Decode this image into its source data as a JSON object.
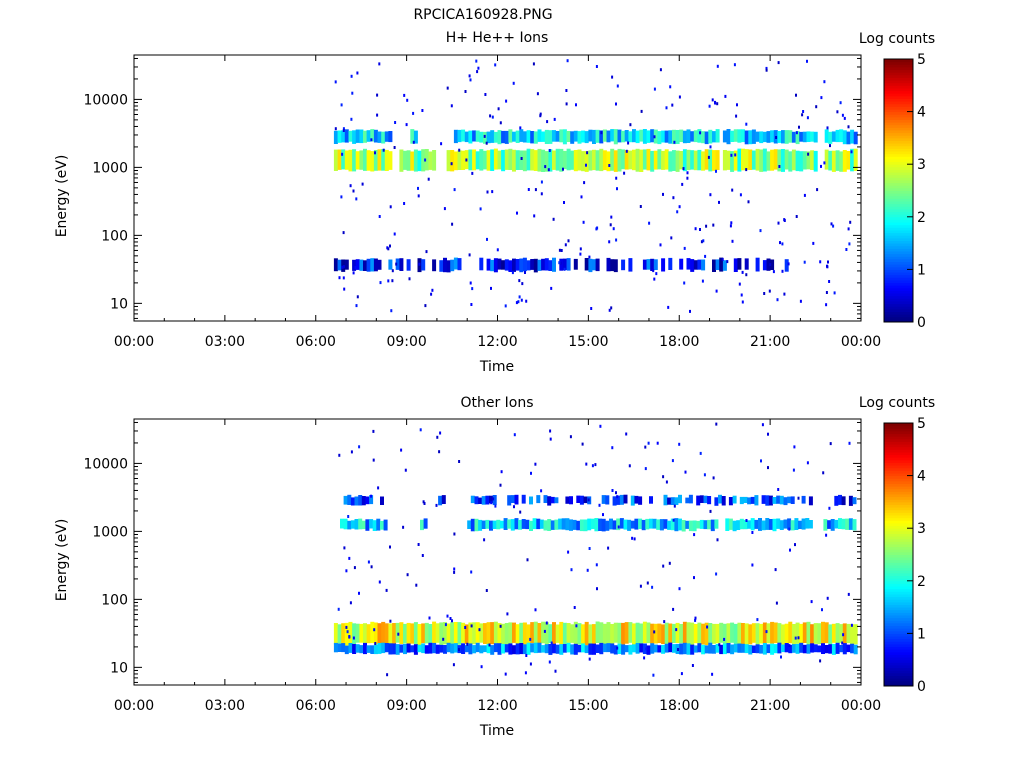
{
  "page": {
    "title": "RPCICA160928.PNG"
  },
  "chart_data": [
    {
      "type": "heatmap",
      "title": "H+ He++ Ions",
      "xlabel": "Time",
      "ylabel": "Energy (eV)",
      "x_ticks": [
        "00:00",
        "03:00",
        "06:00",
        "09:00",
        "12:00",
        "15:00",
        "18:00",
        "21:00",
        "00:00"
      ],
      "xlim_hours": [
        0,
        24
      ],
      "y_scale": "log",
      "ylim": [
        5.5,
        45000
      ],
      "y_ticks": [
        {
          "value": 10,
          "label": "10"
        },
        {
          "value": 100,
          "label": "100"
        },
        {
          "value": 1000,
          "label": "1000"
        },
        {
          "value": 10000,
          "label": "10000"
        }
      ],
      "colorbar": {
        "label": "Log counts",
        "min": 0,
        "max": 5,
        "ticks": [
          "0",
          "1",
          "2",
          "3",
          "4",
          "5"
        ]
      },
      "bands": [
        {
          "energy_low": 900,
          "energy_high": 1800,
          "start_h": 6.6,
          "end_h": 23.8,
          "level": 2.6,
          "gaps": [
            [
              8.4,
              8.7
            ],
            [
              9.9,
              10.3
            ],
            [
              19.2,
              19.4
            ],
            [
              22.5,
              22.7
            ]
          ]
        },
        {
          "energy_low": 2300,
          "energy_high": 3500,
          "start_h": 6.6,
          "end_h": 23.8,
          "level": 1.7,
          "gaps": [
            [
              8.4,
              9.0
            ],
            [
              9.3,
              10.5
            ],
            [
              19.2,
              19.4
            ],
            [
              22.5,
              22.7
            ]
          ]
        },
        {
          "energy_low": 30,
          "energy_high": 45,
          "start_h": 6.6,
          "end_h": 21.8,
          "level": 0.7,
          "gaps": []
        }
      ],
      "scatter_density": 0.6
    },
    {
      "type": "heatmap",
      "title": "Other Ions",
      "xlabel": "Time",
      "ylabel": "Energy (eV)",
      "x_ticks": [
        "00:00",
        "03:00",
        "06:00",
        "09:00",
        "12:00",
        "15:00",
        "18:00",
        "21:00",
        "00:00"
      ],
      "xlim_hours": [
        0,
        24
      ],
      "y_scale": "log",
      "ylim": [
        5.5,
        45000
      ],
      "y_ticks": [
        {
          "value": 10,
          "label": "10"
        },
        {
          "value": 100,
          "label": "100"
        },
        {
          "value": 1000,
          "label": "1000"
        },
        {
          "value": 10000,
          "label": "10000"
        }
      ],
      "colorbar": {
        "label": "Log counts",
        "min": 0,
        "max": 5,
        "ticks": [
          "0",
          "1",
          "2",
          "3",
          "4",
          "5"
        ]
      },
      "bands": [
        {
          "energy_low": 1050,
          "energy_high": 1500,
          "start_h": 6.8,
          "end_h": 23.8,
          "level": 1.6,
          "gaps": [
            [
              8.3,
              9.4
            ],
            [
              9.6,
              10.9
            ],
            [
              19.2,
              19.4
            ],
            [
              22.4,
              22.7
            ]
          ]
        },
        {
          "energy_low": 2500,
          "energy_high": 3300,
          "start_h": 6.8,
          "end_h": 23.8,
          "level": 0.9,
          "gaps": [
            [
              8.3,
              9.8
            ],
            [
              10.2,
              10.9
            ],
            [
              22.4,
              22.7
            ]
          ]
        },
        {
          "energy_low": 22,
          "energy_high": 45,
          "start_h": 6.6,
          "end_h": 23.8,
          "level": 3.0,
          "gaps": []
        },
        {
          "energy_low": 16,
          "energy_high": 22,
          "start_h": 6.6,
          "end_h": 23.8,
          "level": 1.2,
          "gaps": []
        }
      ],
      "scatter_density": 0.4
    }
  ]
}
